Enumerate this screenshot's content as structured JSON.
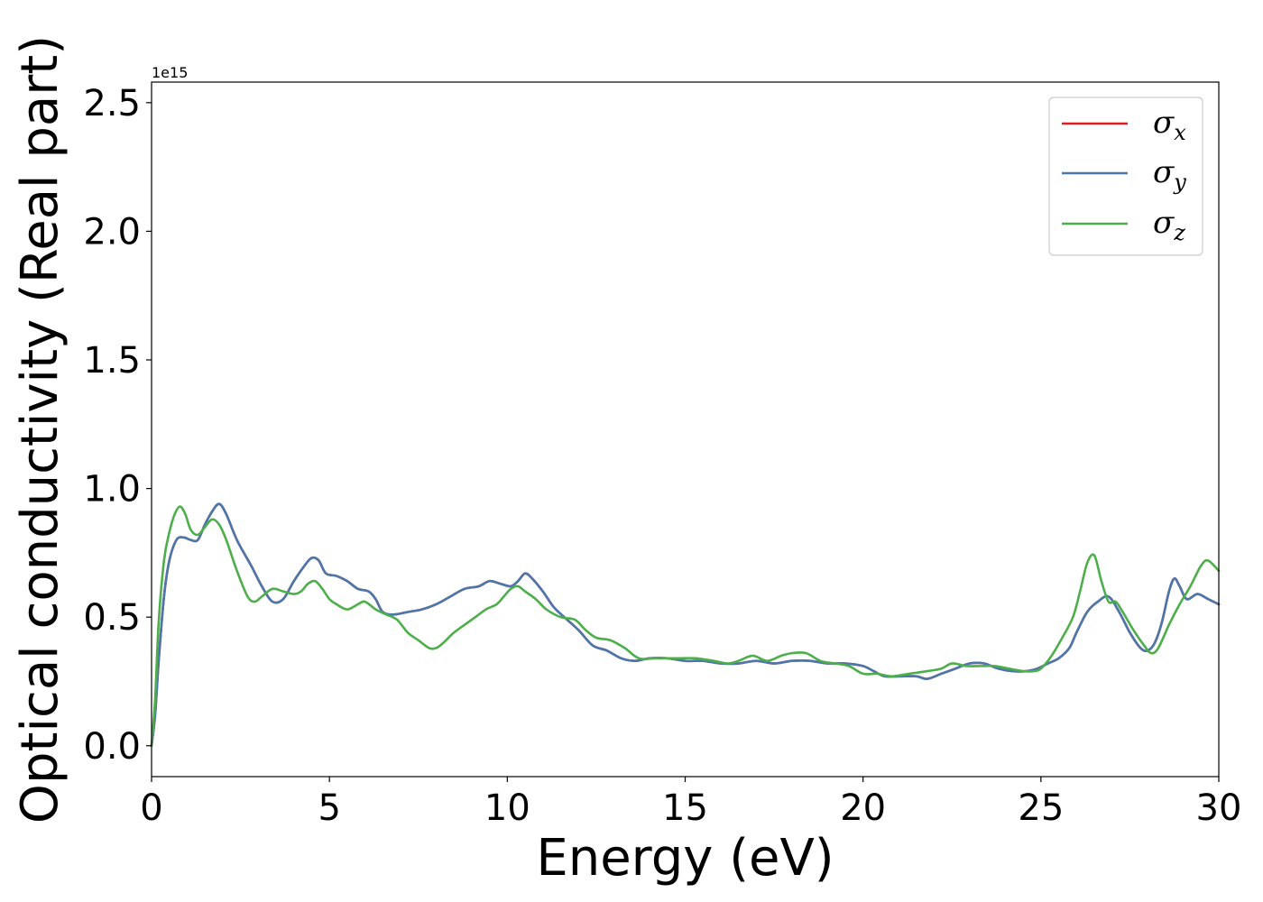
{
  "chart_data": {
    "type": "line",
    "title": "",
    "xlabel": "Energy (eV)",
    "ylabel": "Optical conductivity (Real part)",
    "y_offset_label": "1e15",
    "xlim": [
      0,
      30
    ],
    "ylim": [
      -0.12,
      2.58
    ],
    "xticks": [
      0,
      5,
      10,
      15,
      20,
      25,
      30
    ],
    "xtick_labels": [
      "0",
      "5",
      "10",
      "15",
      "20",
      "25",
      "30"
    ],
    "yticks": [
      0.0,
      0.5,
      1.0,
      1.5,
      2.0,
      2.5
    ],
    "ytick_labels": [
      "0.0",
      "0.5",
      "1.0",
      "1.5",
      "2.0",
      "2.5"
    ],
    "grid": false,
    "legend_position": "top-right",
    "series": [
      {
        "name": "σx",
        "legend_symbol": "σ",
        "legend_sub": "x",
        "color": "#e41a1c",
        "x": [
          0,
          0.1,
          0.2,
          0.35,
          0.5,
          0.7,
          0.9,
          1.1,
          1.3,
          1.5,
          1.7,
          1.9,
          2.1,
          2.4,
          2.8,
          3.1,
          3.4,
          3.7,
          4.0,
          4.3,
          4.5,
          4.7,
          4.9,
          5.2,
          5.5,
          5.8,
          6.1,
          6.3,
          6.5,
          6.8,
          7.2,
          7.6,
          8.0,
          8.4,
          8.8,
          9.2,
          9.5,
          9.8,
          10.1,
          10.3,
          10.5,
          10.7,
          11.0,
          11.3,
          11.6,
          12.0,
          12.4,
          12.8,
          13.2,
          13.6,
          14.0,
          14.5,
          15.0,
          15.5,
          16.0,
          16.5,
          17.0,
          17.5,
          18.0,
          18.5,
          19.0,
          19.5,
          20.0,
          20.3,
          20.6,
          21.0,
          21.5,
          21.8,
          22.2,
          22.6,
          23.0,
          23.4,
          23.8,
          24.2,
          24.6,
          24.9,
          25.2,
          25.5,
          25.8,
          26.0,
          26.3,
          26.6,
          26.9,
          27.2,
          27.5,
          27.8,
          28.0,
          28.2,
          28.4,
          28.6,
          28.75,
          28.9,
          29.1,
          29.4,
          29.7,
          30.0
        ],
        "values": [
          0.0,
          0.12,
          0.33,
          0.58,
          0.72,
          0.8,
          0.81,
          0.8,
          0.8,
          0.86,
          0.91,
          0.94,
          0.9,
          0.8,
          0.7,
          0.62,
          0.56,
          0.57,
          0.64,
          0.7,
          0.73,
          0.72,
          0.67,
          0.66,
          0.64,
          0.61,
          0.6,
          0.57,
          0.52,
          0.51,
          0.52,
          0.53,
          0.55,
          0.58,
          0.61,
          0.62,
          0.64,
          0.63,
          0.62,
          0.64,
          0.67,
          0.65,
          0.6,
          0.54,
          0.5,
          0.45,
          0.39,
          0.37,
          0.34,
          0.33,
          0.34,
          0.34,
          0.33,
          0.33,
          0.32,
          0.32,
          0.33,
          0.32,
          0.33,
          0.33,
          0.32,
          0.32,
          0.31,
          0.29,
          0.27,
          0.27,
          0.27,
          0.26,
          0.28,
          0.3,
          0.32,
          0.32,
          0.3,
          0.29,
          0.29,
          0.3,
          0.32,
          0.34,
          0.38,
          0.44,
          0.52,
          0.56,
          0.58,
          0.52,
          0.44,
          0.38,
          0.37,
          0.4,
          0.48,
          0.6,
          0.65,
          0.62,
          0.57,
          0.59,
          0.57,
          0.55
        ]
      },
      {
        "name": "σy",
        "legend_symbol": "σ",
        "legend_sub": "y",
        "color": "#4a78ad",
        "x": [
          0,
          0.1,
          0.2,
          0.35,
          0.5,
          0.7,
          0.9,
          1.1,
          1.3,
          1.5,
          1.7,
          1.9,
          2.1,
          2.4,
          2.8,
          3.1,
          3.4,
          3.7,
          4.0,
          4.3,
          4.5,
          4.7,
          4.9,
          5.2,
          5.5,
          5.8,
          6.1,
          6.3,
          6.5,
          6.8,
          7.2,
          7.6,
          8.0,
          8.4,
          8.8,
          9.2,
          9.5,
          9.8,
          10.1,
          10.3,
          10.5,
          10.7,
          11.0,
          11.3,
          11.6,
          12.0,
          12.4,
          12.8,
          13.2,
          13.6,
          14.0,
          14.5,
          15.0,
          15.5,
          16.0,
          16.5,
          17.0,
          17.5,
          18.0,
          18.5,
          19.0,
          19.5,
          20.0,
          20.3,
          20.6,
          21.0,
          21.5,
          21.8,
          22.2,
          22.6,
          23.0,
          23.4,
          23.8,
          24.2,
          24.6,
          24.9,
          25.2,
          25.5,
          25.8,
          26.0,
          26.3,
          26.6,
          26.9,
          27.2,
          27.5,
          27.8,
          28.0,
          28.2,
          28.4,
          28.6,
          28.75,
          28.9,
          29.1,
          29.4,
          29.7,
          30.0
        ],
        "values": [
          0.0,
          0.12,
          0.33,
          0.58,
          0.72,
          0.8,
          0.81,
          0.8,
          0.8,
          0.86,
          0.91,
          0.94,
          0.9,
          0.8,
          0.7,
          0.62,
          0.56,
          0.57,
          0.64,
          0.7,
          0.73,
          0.72,
          0.67,
          0.66,
          0.64,
          0.61,
          0.6,
          0.57,
          0.52,
          0.51,
          0.52,
          0.53,
          0.55,
          0.58,
          0.61,
          0.62,
          0.64,
          0.63,
          0.62,
          0.64,
          0.67,
          0.65,
          0.6,
          0.54,
          0.5,
          0.45,
          0.39,
          0.37,
          0.34,
          0.33,
          0.34,
          0.34,
          0.33,
          0.33,
          0.32,
          0.32,
          0.33,
          0.32,
          0.33,
          0.33,
          0.32,
          0.32,
          0.31,
          0.29,
          0.27,
          0.27,
          0.27,
          0.26,
          0.28,
          0.3,
          0.32,
          0.32,
          0.3,
          0.29,
          0.29,
          0.3,
          0.32,
          0.34,
          0.38,
          0.44,
          0.52,
          0.56,
          0.58,
          0.52,
          0.44,
          0.38,
          0.37,
          0.4,
          0.48,
          0.6,
          0.65,
          0.62,
          0.57,
          0.59,
          0.57,
          0.55
        ]
      },
      {
        "name": "σz",
        "legend_symbol": "σ",
        "legend_sub": "z",
        "color": "#4daf4a",
        "x": [
          0,
          0.1,
          0.2,
          0.35,
          0.5,
          0.65,
          0.8,
          0.95,
          1.1,
          1.3,
          1.5,
          1.7,
          1.9,
          2.1,
          2.4,
          2.7,
          2.9,
          3.1,
          3.4,
          3.7,
          4.0,
          4.2,
          4.4,
          4.6,
          4.8,
          5.0,
          5.2,
          5.5,
          5.8,
          6.0,
          6.3,
          6.6,
          6.9,
          7.2,
          7.5,
          7.8,
          8.0,
          8.2,
          8.5,
          8.8,
          9.1,
          9.4,
          9.7,
          9.9,
          10.1,
          10.3,
          10.5,
          10.8,
          11.1,
          11.5,
          11.9,
          12.2,
          12.5,
          12.9,
          13.3,
          13.7,
          14.2,
          14.8,
          15.3,
          15.8,
          16.2,
          16.5,
          16.9,
          17.3,
          17.7,
          18.0,
          18.4,
          18.8,
          19.2,
          19.6,
          20.0,
          20.4,
          20.8,
          21.3,
          21.8,
          22.2,
          22.5,
          22.9,
          23.3,
          23.7,
          24.1,
          24.5,
          24.8,
          25.0,
          25.3,
          25.6,
          25.9,
          26.1,
          26.3,
          26.5,
          26.7,
          26.9,
          27.1,
          27.3,
          27.6,
          27.9,
          28.1,
          28.3,
          28.6,
          28.9,
          29.2,
          29.5,
          29.7,
          30.0
        ],
        "values": [
          0.0,
          0.18,
          0.48,
          0.72,
          0.83,
          0.9,
          0.93,
          0.9,
          0.84,
          0.82,
          0.85,
          0.88,
          0.86,
          0.8,
          0.68,
          0.58,
          0.56,
          0.58,
          0.61,
          0.6,
          0.59,
          0.6,
          0.63,
          0.64,
          0.61,
          0.57,
          0.55,
          0.53,
          0.55,
          0.56,
          0.53,
          0.51,
          0.49,
          0.44,
          0.41,
          0.38,
          0.38,
          0.4,
          0.44,
          0.47,
          0.5,
          0.53,
          0.55,
          0.58,
          0.61,
          0.62,
          0.6,
          0.57,
          0.53,
          0.5,
          0.49,
          0.45,
          0.42,
          0.41,
          0.38,
          0.34,
          0.34,
          0.34,
          0.34,
          0.33,
          0.32,
          0.33,
          0.35,
          0.33,
          0.35,
          0.36,
          0.36,
          0.33,
          0.32,
          0.31,
          0.28,
          0.28,
          0.27,
          0.28,
          0.29,
          0.3,
          0.32,
          0.31,
          0.31,
          0.31,
          0.3,
          0.29,
          0.29,
          0.3,
          0.35,
          0.42,
          0.5,
          0.6,
          0.71,
          0.74,
          0.64,
          0.56,
          0.56,
          0.52,
          0.45,
          0.39,
          0.36,
          0.38,
          0.47,
          0.55,
          0.62,
          0.7,
          0.72,
          0.68
        ]
      }
    ]
  }
}
